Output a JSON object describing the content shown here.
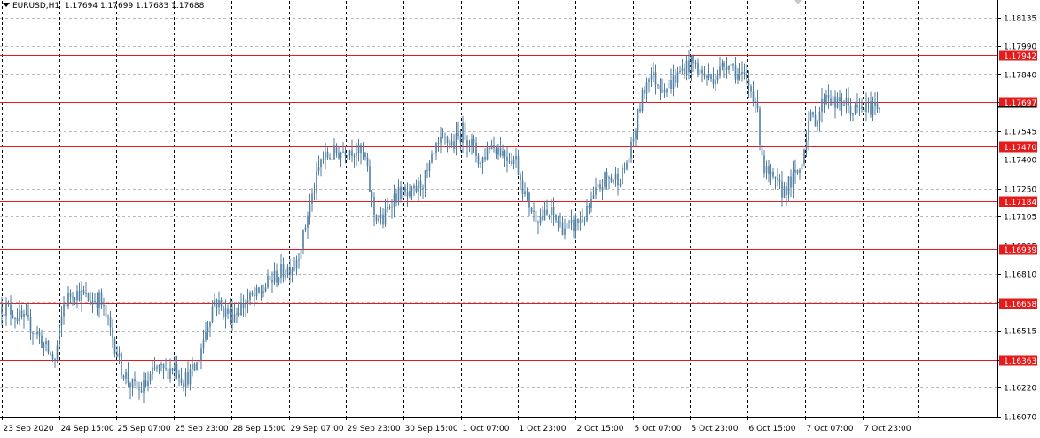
{
  "header": {
    "symbol": "EURUSD,H1",
    "open": "1.17694",
    "high": "1.17699",
    "low": "1.17683",
    "close": "1.17688"
  },
  "colors": {
    "candle": "#4f7ea3",
    "level_line": "#e31b1b",
    "level_badge": "#e31b1b",
    "grid": "#b9b9b9"
  },
  "chart_data": {
    "type": "candlestick",
    "symbol": "EURUSD",
    "timeframe": "H1",
    "ylim": [
      1.1607,
      1.18185
    ],
    "y_ticks": [
      "1.18135",
      "1.17990",
      "1.17840",
      "1.17697",
      "1.17545",
      "1.17400",
      "1.17250",
      "1.17105",
      "1.16955",
      "1.16810",
      "1.16660",
      "1.16515",
      "1.16365",
      "1.16220",
      "1.16070"
    ],
    "x_ticks": [
      "23 Sep 2020",
      "24 Sep 15:00",
      "25 Sep 07:00",
      "25 Sep 23:00",
      "28 Sep 15:00",
      "29 Sep 07:00",
      "29 Sep 23:00",
      "30 Sep 15:00",
      "1 Oct 07:00",
      "1 Oct 23:00",
      "2 Oct 15:00",
      "5 Oct 07:00",
      "5 Oct 23:00",
      "6 Oct 15:00",
      "7 Oct 07:00",
      "7 Oct 23:00"
    ],
    "levels": [
      "1.17942",
      "1.17697",
      "1.17470",
      "1.17184",
      "1.16939",
      "1.16658",
      "1.16363"
    ],
    "last_price": "1.17697",
    "close_anchors": [
      [
        0,
        1.1664
      ],
      [
        4,
        1.1662
      ],
      [
        8,
        1.1658
      ],
      [
        12,
        1.1655
      ],
      [
        16,
        1.165
      ],
      [
        20,
        1.1642
      ],
      [
        24,
        1.1636
      ],
      [
        28,
        1.1665
      ],
      [
        32,
        1.1672
      ],
      [
        36,
        1.167
      ],
      [
        40,
        1.1667
      ],
      [
        44,
        1.1668
      ],
      [
        46,
        1.1662
      ],
      [
        50,
        1.1648
      ],
      [
        54,
        1.1632
      ],
      [
        58,
        1.1624
      ],
      [
        62,
        1.162
      ],
      [
        66,
        1.1625
      ],
      [
        70,
        1.1632
      ],
      [
        74,
        1.163
      ],
      [
        78,
        1.1634
      ],
      [
        82,
        1.1626
      ],
      [
        86,
        1.163
      ],
      [
        88,
        1.1634
      ],
      [
        92,
        1.1652
      ],
      [
        96,
        1.1668
      ],
      [
        100,
        1.1662
      ],
      [
        104,
        1.166
      ],
      [
        108,
        1.1664
      ],
      [
        112,
        1.1668
      ],
      [
        116,
        1.167
      ],
      [
        120,
        1.1676
      ],
      [
        124,
        1.168
      ],
      [
        128,
        1.1683
      ],
      [
        132,
        1.1686
      ],
      [
        136,
        1.17
      ],
      [
        138,
        1.1712
      ],
      [
        141,
        1.1725
      ],
      [
        144,
        1.174
      ],
      [
        148,
        1.1742
      ],
      [
        152,
        1.1744
      ],
      [
        156,
        1.1746
      ],
      [
        160,
        1.1745
      ],
      [
        164,
        1.174
      ],
      [
        166,
        1.1725
      ],
      [
        168,
        1.1712
      ],
      [
        172,
        1.1708
      ],
      [
        176,
        1.172
      ],
      [
        180,
        1.1723
      ],
      [
        184,
        1.172
      ],
      [
        188,
        1.1726
      ],
      [
        192,
        1.1732
      ],
      [
        196,
        1.1745
      ],
      [
        200,
        1.175
      ],
      [
        204,
        1.1748
      ],
      [
        208,
        1.1755
      ],
      [
        212,
        1.1748
      ],
      [
        216,
        1.1738
      ],
      [
        220,
        1.1748
      ],
      [
        224,
        1.1746
      ],
      [
        228,
        1.1742
      ],
      [
        232,
        1.174
      ],
      [
        236,
        1.1722
      ],
      [
        240,
        1.1712
      ],
      [
        244,
        1.171
      ],
      [
        248,
        1.1712
      ],
      [
        252,
        1.1706
      ],
      [
        256,
        1.1704
      ],
      [
        260,
        1.1708
      ],
      [
        264,
        1.1712
      ],
      [
        268,
        1.1722
      ],
      [
        272,
        1.173
      ],
      [
        276,
        1.173
      ],
      [
        280,
        1.1732
      ],
      [
        284,
        1.1745
      ],
      [
        288,
        1.1768
      ],
      [
        292,
        1.1785
      ],
      [
        296,
        1.178
      ],
      [
        300,
        1.1778
      ],
      [
        304,
        1.1782
      ],
      [
        308,
        1.1788
      ],
      [
        312,
        1.179
      ],
      [
        316,
        1.1784
      ],
      [
        320,
        1.1782
      ],
      [
        324,
        1.1786
      ],
      [
        328,
        1.1792
      ],
      [
        332,
        1.1784
      ],
      [
        336,
        1.178
      ],
      [
        340,
        1.1772
      ],
      [
        342,
        1.1752
      ],
      [
        344,
        1.1735
      ],
      [
        348,
        1.1728
      ],
      [
        352,
        1.1724
      ],
      [
        356,
        1.1728
      ],
      [
        360,
        1.1735
      ],
      [
        364,
        1.176
      ],
      [
        368,
        1.1762
      ],
      [
        372,
        1.1775
      ],
      [
        376,
        1.1768
      ],
      [
        380,
        1.177
      ],
      [
        384,
        1.1765
      ],
      [
        388,
        1.1766
      ],
      [
        392,
        1.1767
      ],
      [
        396,
        1.1769
      ]
    ],
    "bar_count": 397
  }
}
